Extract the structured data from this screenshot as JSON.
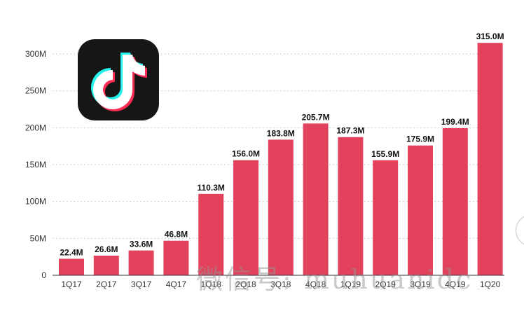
{
  "chart_data": {
    "type": "bar",
    "categories": [
      "1Q17",
      "2Q17",
      "3Q17",
      "4Q17",
      "1Q18",
      "2Q18",
      "3Q18",
      "4Q18",
      "1Q19",
      "2Q19",
      "3Q19",
      "4Q19",
      "1Q20"
    ],
    "values": [
      22.4,
      26.6,
      33.6,
      46.8,
      110.3,
      156.0,
      183.8,
      205.7,
      187.3,
      155.9,
      175.9,
      199.4,
      315.0
    ],
    "value_labels": [
      "22.4M",
      "26.6M",
      "33.6M",
      "46.8M",
      "110.3M",
      "156.0M",
      "183.8M",
      "205.7M",
      "187.3M",
      "155.9M",
      "175.9M",
      "199.4M",
      "315.0M"
    ],
    "ylim": [
      0,
      300
    ],
    "y_ticks": [
      0,
      50,
      100,
      150,
      200,
      250,
      300
    ],
    "y_tick_labels": [
      "0",
      "50M",
      "100M",
      "150M",
      "200M",
      "250M",
      "300M"
    ],
    "grid": true,
    "bar_color": "#e2425c"
  },
  "logo": {
    "icon": "tiktok-note-icon",
    "background": "#161616",
    "colors": [
      "#ffffff",
      "#25f4ee",
      "#fe2c55"
    ]
  },
  "watermark": {
    "text": "微信号: muhuanidc"
  }
}
